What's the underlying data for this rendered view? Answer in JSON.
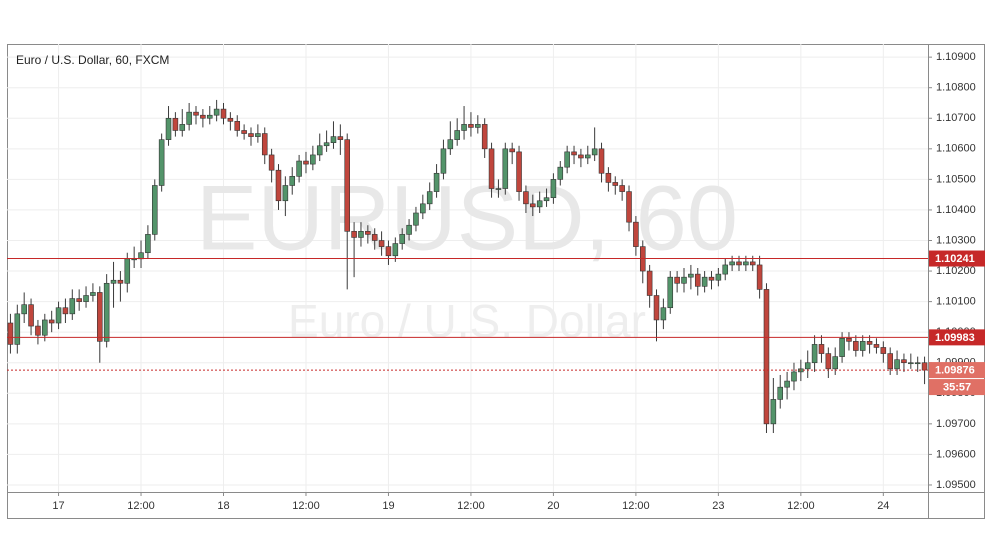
{
  "chart_data": {
    "type": "candlestick",
    "title": "Euro / U.S. Dollar, 60, FXCM",
    "watermark": "EURUSD, 60",
    "watermark_subtitle": "Euro / U.S. Dollar",
    "categories": [
      null,
      null,
      null,
      null,
      null,
      null,
      null,
      "17",
      null,
      null,
      null,
      null,
      null,
      null,
      null,
      null,
      null,
      null,
      null,
      "12:00",
      null,
      null,
      null,
      null,
      null,
      null,
      null,
      null,
      null,
      null,
      null,
      "18",
      null,
      null,
      null,
      null,
      null,
      null,
      null,
      null,
      null,
      null,
      null,
      "12:00",
      null,
      null,
      null,
      null,
      null,
      null,
      null,
      null,
      null,
      null,
      null,
      "19",
      null,
      null,
      null,
      null,
      null,
      null,
      null,
      null,
      null,
      null,
      null,
      "12:00",
      null,
      null,
      null,
      null,
      null,
      null,
      null,
      null,
      null,
      null,
      null,
      "20",
      null,
      null,
      null,
      null,
      null,
      null,
      null,
      null,
      null,
      null,
      null,
      "12:00",
      null,
      null,
      null,
      null,
      null,
      null,
      null,
      null,
      null,
      null,
      null,
      "23",
      null,
      null,
      null,
      null,
      null,
      null,
      null,
      null,
      null,
      null,
      null,
      "12:00",
      null,
      null,
      null,
      null,
      null,
      null,
      null,
      null,
      null,
      null,
      null,
      "24",
      null,
      null,
      null,
      null,
      null,
      null
    ],
    "open": [
      1.1003,
      1.0996,
      1.1006,
      1.1009,
      1.1002,
      1.0999,
      1.1004,
      1.1003,
      1.1008,
      1.1006,
      1.1011,
      1.101,
      1.1012,
      1.1013,
      1.0997,
      1.1016,
      1.1017,
      1.1016,
      1.1024,
      1.1024,
      1.1026,
      1.1032,
      1.1048,
      1.1063,
      1.107,
      1.1066,
      1.1068,
      1.1072,
      1.1071,
      1.107,
      1.1071,
      1.1073,
      1.107,
      1.1069,
      1.1066,
      1.1065,
      1.1064,
      1.1065,
      1.1058,
      1.1053,
      1.1043,
      1.1048,
      1.1051,
      1.1056,
      1.1055,
      1.1058,
      1.1061,
      1.1062,
      1.1064,
      1.1063,
      1.1033,
      1.1031,
      1.1033,
      1.1032,
      1.103,
      1.1028,
      1.1025,
      1.1029,
      1.1032,
      1.1035,
      1.1039,
      1.1042,
      1.1046,
      1.1052,
      1.106,
      1.1063,
      1.1066,
      1.1068,
      1.1067,
      1.1068,
      1.106,
      1.1047,
      1.1047,
      1.106,
      1.1059,
      1.1046,
      1.1042,
      1.1041,
      1.1043,
      1.1044,
      1.105,
      1.1054,
      1.1059,
      1.1058,
      1.1057,
      1.1058,
      1.106,
      1.1052,
      1.1049,
      1.1048,
      1.1046,
      1.1036,
      1.1028,
      1.102,
      1.1012,
      1.1004,
      1.1008,
      1.1018,
      1.1016,
      1.1018,
      1.1019,
      1.1015,
      1.1018,
      1.1017,
      1.1019,
      1.1022,
      1.1023,
      1.1022,
      1.1023,
      1.1022,
      1.1014,
      1.097,
      1.0978,
      1.0982,
      1.0984,
      1.0987,
      1.0988,
      1.099,
      1.0996,
      1.0993,
      1.0988,
      1.0992,
      1.0998,
      1.0997,
      1.0994,
      1.0997,
      1.0996,
      1.0995,
      1.0993,
      1.0988,
      1.0991,
      1.099,
      1.099,
      1.099
    ],
    "high": [
      1.1006,
      1.1009,
      1.1013,
      1.1011,
      1.1004,
      1.1006,
      1.1007,
      1.101,
      1.1011,
      1.1014,
      1.1014,
      1.1015,
      1.1016,
      1.1015,
      1.1019,
      1.1023,
      1.102,
      1.1026,
      1.1028,
      1.103,
      1.1035,
      1.105,
      1.1065,
      1.1074,
      1.1072,
      1.1073,
      1.1075,
      1.1074,
      1.1073,
      1.1074,
      1.1076,
      1.1075,
      1.1072,
      1.1071,
      1.1068,
      1.1067,
      1.1068,
      1.1067,
      1.106,
      1.1055,
      1.1051,
      1.1054,
      1.1058,
      1.1059,
      1.1061,
      1.1065,
      1.1066,
      1.1069,
      1.1068,
      1.1065,
      1.1036,
      1.1036,
      1.1035,
      1.1034,
      1.1033,
      1.103,
      1.1031,
      1.1034,
      1.1037,
      1.1041,
      1.1045,
      1.1049,
      1.1055,
      1.1063,
      1.1069,
      1.107,
      1.1074,
      1.1072,
      1.1071,
      1.107,
      1.1062,
      1.105,
      1.1062,
      1.1062,
      1.1061,
      1.1048,
      1.1045,
      1.1046,
      1.1047,
      1.1052,
      1.1056,
      1.1061,
      1.1061,
      1.106,
      1.1061,
      1.1067,
      1.1062,
      1.1054,
      1.1051,
      1.105,
      1.1048,
      1.1038,
      1.103,
      1.1022,
      1.1014,
      1.1011,
      1.102,
      1.102,
      1.1021,
      1.1022,
      1.1021,
      1.102,
      1.102,
      1.1021,
      1.1024,
      1.1025,
      1.1025,
      1.1025,
      1.1025,
      1.1025,
      1.1016,
      1.0985,
      1.0986,
      1.0987,
      1.099,
      1.0991,
      1.0994,
      1.0999,
      1.0999,
      1.0995,
      1.0995,
      1.1,
      1.1,
      1.0999,
      1.0999,
      1.0999,
      1.0998,
      1.0997,
      1.0995,
      1.0994,
      1.0993,
      1.0993,
      1.0992,
      1.0992
    ],
    "low": [
      1.0993,
      1.0993,
      1.1003,
      1.0999,
      1.0996,
      1.0997,
      1.1,
      1.1001,
      1.1003,
      1.1004,
      1.1007,
      1.1008,
      1.101,
      1.099,
      1.0995,
      1.1008,
      1.101,
      1.1013,
      1.1021,
      1.1021,
      1.1024,
      1.103,
      1.1046,
      1.1061,
      1.1064,
      1.1064,
      1.1066,
      1.1068,
      1.1067,
      1.1068,
      1.1069,
      1.1068,
      1.1066,
      1.1064,
      1.1063,
      1.1061,
      1.1062,
      1.1055,
      1.1049,
      1.104,
      1.1038,
      1.1045,
      1.1049,
      1.1052,
      1.1053,
      1.1056,
      1.1059,
      1.106,
      1.1058,
      1.1014,
      1.1018,
      1.1028,
      1.1029,
      1.1027,
      1.1025,
      1.1022,
      1.1023,
      1.1027,
      1.103,
      1.1033,
      1.1037,
      1.104,
      1.1044,
      1.105,
      1.1058,
      1.1061,
      1.1063,
      1.1064,
      1.1065,
      1.1057,
      1.1044,
      1.1044,
      1.1045,
      1.1055,
      1.1043,
      1.1039,
      1.1038,
      1.1039,
      1.1041,
      1.1042,
      1.1048,
      1.1052,
      1.1055,
      1.1054,
      1.1055,
      1.1056,
      1.1049,
      1.1046,
      1.1045,
      1.1043,
      1.1033,
      1.1025,
      1.1016,
      1.1008,
      1.0997,
      1.1001,
      1.1006,
      1.1013,
      1.1013,
      1.1014,
      1.1012,
      1.1013,
      1.1014,
      1.1015,
      1.1017,
      1.102,
      1.102,
      1.102,
      1.102,
      1.1011,
      1.0967,
      1.0967,
      1.0975,
      1.0978,
      1.0981,
      1.0984,
      1.0985,
      1.0987,
      1.099,
      1.0985,
      1.0986,
      1.099,
      1.0994,
      1.0992,
      1.0992,
      1.0993,
      1.0993,
      1.099,
      1.0986,
      1.0986,
      1.0987,
      1.0988,
      1.0987,
      1.0983
    ],
    "close": [
      1.0996,
      1.1006,
      1.1009,
      1.1002,
      1.0999,
      1.1004,
      1.1003,
      1.1008,
      1.1006,
      1.1011,
      1.101,
      1.1012,
      1.1013,
      1.0997,
      1.1016,
      1.1017,
      1.1016,
      1.1024,
      1.1024,
      1.1026,
      1.1032,
      1.1048,
      1.1063,
      1.107,
      1.1066,
      1.1068,
      1.1072,
      1.1071,
      1.107,
      1.1071,
      1.1073,
      1.107,
      1.1069,
      1.1066,
      1.1065,
      1.1064,
      1.1065,
      1.1058,
      1.1053,
      1.1043,
      1.1048,
      1.1051,
      1.1056,
      1.1055,
      1.1058,
      1.1061,
      1.1062,
      1.1064,
      1.1063,
      1.1033,
      1.1031,
      1.1033,
      1.1032,
      1.103,
      1.1028,
      1.1025,
      1.1029,
      1.1032,
      1.1035,
      1.1039,
      1.1042,
      1.1046,
      1.1052,
      1.106,
      1.1063,
      1.1066,
      1.1068,
      1.1067,
      1.1068,
      1.106,
      1.1047,
      1.1047,
      1.106,
      1.1059,
      1.1046,
      1.1042,
      1.1041,
      1.1043,
      1.1044,
      1.105,
      1.1054,
      1.1059,
      1.1058,
      1.1057,
      1.1058,
      1.106,
      1.1052,
      1.1049,
      1.1048,
      1.1046,
      1.1036,
      1.1028,
      1.102,
      1.1012,
      1.1004,
      1.1008,
      1.1018,
      1.1016,
      1.1018,
      1.1019,
      1.1015,
      1.1018,
      1.1017,
      1.1019,
      1.1022,
      1.1023,
      1.1022,
      1.1023,
      1.1022,
      1.1014,
      1.097,
      1.0978,
      1.0982,
      1.0984,
      1.0987,
      1.0988,
      1.099,
      1.0996,
      1.0993,
      1.0988,
      1.0992,
      1.0998,
      1.0997,
      1.0994,
      1.0997,
      1.0996,
      1.0995,
      1.0993,
      1.0988,
      1.0991,
      1.099,
      1.099,
      1.099,
      1.09876
    ],
    "up_color": "#53946a",
    "down_color": "#c0463d",
    "ylim": [
      1.09477,
      1.10943
    ],
    "yticks": [
      {
        "value": 1.095,
        "label": "1.09500"
      },
      {
        "value": 1.096,
        "label": "1.09600"
      },
      {
        "value": 1.097,
        "label": "1.09700"
      },
      {
        "value": 1.098,
        "label": "1.09800"
      },
      {
        "value": 1.099,
        "label": "1.09900"
      },
      {
        "value": 1.1,
        "label": "1.10000"
      },
      {
        "value": 1.101,
        "label": "1.10100"
      },
      {
        "value": 1.102,
        "label": "1.10200"
      },
      {
        "value": 1.103,
        "label": "1.10300"
      },
      {
        "value": 1.104,
        "label": "1.10400"
      },
      {
        "value": 1.105,
        "label": "1.10500"
      },
      {
        "value": 1.106,
        "label": "1.10600"
      },
      {
        "value": 1.107,
        "label": "1.10700"
      },
      {
        "value": 1.108,
        "label": "1.10800"
      },
      {
        "value": 1.109,
        "label": "1.10900"
      }
    ],
    "grid": true,
    "levels": [
      {
        "value": 1.10241,
        "label": "1.10241"
      },
      {
        "value": 1.09983,
        "label": "1.09983"
      }
    ],
    "level_color": "#c62828",
    "last_price": {
      "value": 1.09876,
      "label": "1.09876"
    },
    "last_price_color": "#e07065",
    "countdown": "35:57"
  }
}
